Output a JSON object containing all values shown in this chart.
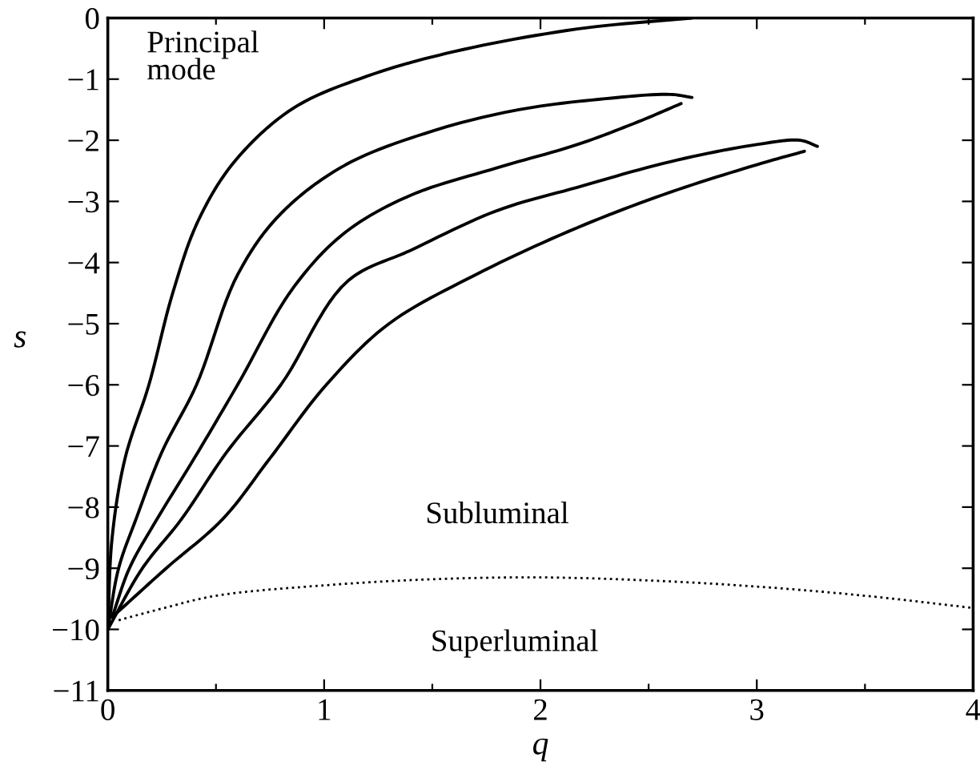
{
  "chart_data": {
    "type": "line",
    "xlabel": "q",
    "ylabel": "s",
    "xlim": [
      0,
      4
    ],
    "ylim": [
      -11,
      0
    ],
    "xticks": [
      0,
      {
        "value": 0.5,
        "label": null
      },
      1,
      {
        "value": 1.5,
        "label": null
      },
      2,
      {
        "value": 2.5,
        "label": null
      },
      3,
      {
        "value": 3.5,
        "label": null
      },
      4
    ],
    "yticks": [
      {
        "value": -11,
        "label": "−11"
      },
      {
        "value": -10,
        "label": "−10"
      },
      {
        "value": -9,
        "label": "−9"
      },
      {
        "value": -8,
        "label": "−8"
      },
      {
        "value": -7,
        "label": "−7"
      },
      {
        "value": -6,
        "label": "−6"
      },
      {
        "value": -5,
        "label": "−5"
      },
      {
        "value": -4,
        "label": "−4"
      },
      {
        "value": -3,
        "label": "−3"
      },
      {
        "value": -2,
        "label": "−2"
      },
      {
        "value": -1,
        "label": "−1"
      },
      0
    ],
    "grid": false,
    "legend": false,
    "marker": "none",
    "annotations": [
      "Principal\nmode",
      "Subluminal",
      "Superluminal"
    ],
    "series": [
      {
        "color": "#000000",
        "line_style": "solid",
        "x": [
          0,
          0.02,
          0.08,
          0.19,
          0.3,
          0.42,
          0.59,
          0.86,
          1.2,
          1.6,
          2.17,
          2.7
        ],
        "values": [
          -10,
          -8.5,
          -7.2,
          -6,
          -4.5,
          -3.3,
          -2.33,
          -1.47,
          -0.95,
          -0.55,
          -0.18,
          0
        ]
      },
      {
        "color": "#000000",
        "line_style": "solid",
        "x": [
          0,
          0.05,
          0.13,
          0.25,
          0.41,
          0.6,
          0.8,
          1.1,
          1.5,
          1.9,
          2.3,
          2.6,
          2.7
        ],
        "values": [
          -10,
          -9,
          -8.2,
          -7.1,
          -6,
          -4.2,
          -3.2,
          -2.4,
          -1.85,
          -1.5,
          -1.32,
          -1.25,
          -1.3
        ]
      },
      {
        "color": "#000000",
        "line_style": "solid",
        "x": [
          0.02,
          0.1,
          0.21,
          0.4,
          0.6,
          0.86,
          1.1,
          1.4,
          1.8,
          2.17,
          2.45,
          2.65
        ],
        "values": [
          -9.8,
          -9,
          -8.3,
          -7.2,
          -6,
          -4.4,
          -3.5,
          -2.9,
          -2.45,
          -2.07,
          -1.7,
          -1.4
        ]
      },
      {
        "color": "#000000",
        "line_style": "solid",
        "x": [
          0,
          0.16,
          0.34,
          0.55,
          0.8,
          1.11,
          1.4,
          1.8,
          2.17,
          2.6,
          3.0,
          3.2,
          3.28
        ],
        "values": [
          -10,
          -9,
          -8.2,
          -7.1,
          -6,
          -4.3,
          -3.8,
          -3.15,
          -2.77,
          -2.35,
          -2.07,
          -2.0,
          -2.1
        ]
      },
      {
        "color": "#000000",
        "line_style": "solid",
        "x": [
          0.02,
          0.27,
          0.53,
          0.75,
          1.01,
          1.3,
          1.7,
          2.17,
          2.6,
          3.0,
          3.22
        ],
        "values": [
          -9.8,
          -9,
          -8.2,
          -7.2,
          -6,
          -5,
          -4.2,
          -3.43,
          -2.85,
          -2.4,
          -2.18
        ]
      },
      {
        "color": "#000000",
        "line_style": "dotted",
        "x": [
          0.05,
          0.25,
          0.5,
          1,
          1.5,
          2,
          2.5,
          3,
          3.5,
          4
        ],
        "values": [
          -9.85,
          -9.66,
          -9.45,
          -9.28,
          -9.18,
          -9.15,
          -9.2,
          -9.3,
          -9.45,
          -9.65
        ]
      }
    ]
  }
}
